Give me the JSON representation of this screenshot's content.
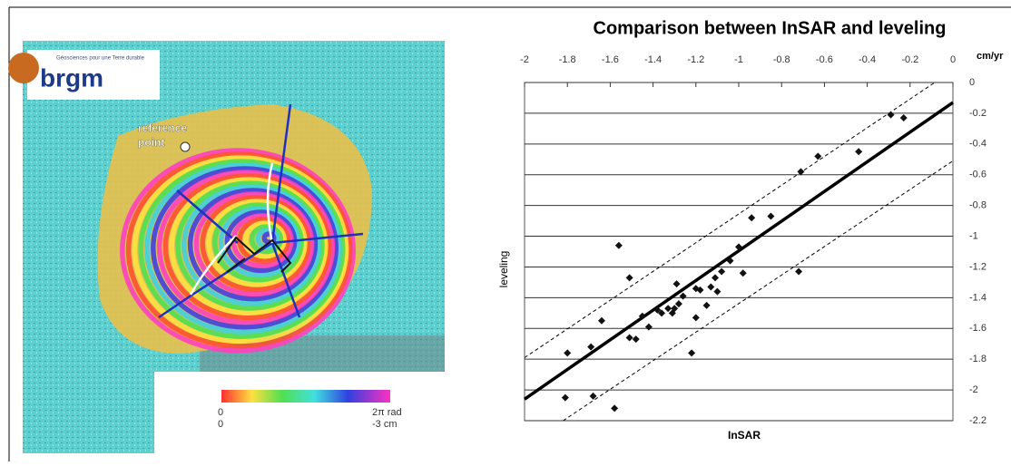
{
  "image": {
    "logo_tagline": "Géosciences pour une Terre durable",
    "logo_name": "brgm",
    "reference_label": "reference\npoint",
    "colorbar": {
      "phase_min": "0",
      "phase_max": "2π rad",
      "disp_min": "0",
      "disp_max": "-3 cm"
    }
  },
  "chart_data": {
    "type": "scatter",
    "title": "Comparison between InSAR and leveling",
    "x_label": "InSAR",
    "y_label": "leveling",
    "x_unit": "cm/yr",
    "xlim": [
      -2,
      0
    ],
    "ylim": [
      -2.2,
      0
    ],
    "xticks": [
      -2,
      -1.8,
      -1.6,
      -1.4,
      -1.2,
      -1,
      -0.8,
      -0.6,
      -0.4,
      -0.2,
      0
    ],
    "yticks": [
      0,
      -0.2,
      -0.4,
      -0.6,
      -0.8,
      -1,
      -1.2,
      -1.4,
      -1.6,
      -1.8,
      -2,
      -2.2
    ],
    "grid": true,
    "color": "#111111",
    "x": [
      -0.29,
      -0.23,
      -0.44,
      -0.63,
      -0.71,
      -0.85,
      -0.94,
      -1.56,
      -1.0,
      -1.04,
      -1.08,
      -0.72,
      -0.98,
      -1.51,
      -1.11,
      -1.13,
      -1.29,
      -1.2,
      -1.18,
      -1.1,
      -1.26,
      -1.28,
      -1.15,
      -1.38,
      -1.33,
      -1.31,
      -1.3,
      -1.45,
      -1.36,
      -1.2,
      -1.42,
      -1.64,
      -1.51,
      -1.48,
      -1.69,
      -1.8,
      -1.22,
      -1.81,
      -1.68,
      -1.58
    ],
    "values": [
      -0.21,
      -0.23,
      -0.45,
      -0.48,
      -0.58,
      -0.87,
      -0.88,
      -1.06,
      -1.07,
      -1.16,
      -1.23,
      -1.23,
      -1.24,
      -1.27,
      -1.27,
      -1.33,
      -1.31,
      -1.34,
      -1.35,
      -1.36,
      -1.39,
      -1.44,
      -1.45,
      -1.48,
      -1.47,
      -1.5,
      -1.47,
      -1.52,
      -1.5,
      -1.53,
      -1.59,
      -1.55,
      -1.66,
      -1.67,
      -1.72,
      -1.76,
      -1.76,
      -2.05,
      -2.04,
      -2.12
    ],
    "lines": [
      {
        "style": "solid",
        "x": [
          -2,
          0
        ],
        "y": [
          -2.06,
          -0.13
        ]
      },
      {
        "style": "dashed",
        "x": [
          -2,
          -0.085
        ],
        "y": [
          -1.79,
          0
        ]
      },
      {
        "style": "dashed",
        "x": [
          -1.82,
          0
        ],
        "y": [
          -2.2,
          -0.51
        ]
      }
    ]
  }
}
